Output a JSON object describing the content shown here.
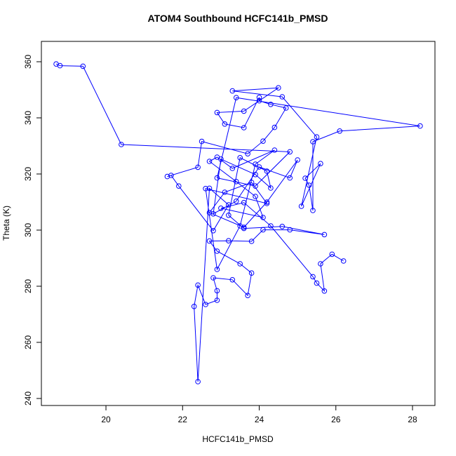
{
  "chart_data": {
    "type": "line",
    "title": "ATOM4 Southbound HCFC141b_PMSD",
    "xlabel": "HCFC141b_PMSD",
    "ylabel": "Theta (K)",
    "color": "#0000ff",
    "marker": "circle",
    "xlim": [
      18.315,
      28.586
    ],
    "ylim": [
      237.5,
      367.25
    ],
    "xticks": [
      20,
      22,
      24,
      26,
      28
    ],
    "yticks": [
      240,
      260,
      280,
      300,
      320,
      340,
      360
    ],
    "x": [
      18.7,
      18.8,
      19.4,
      20.4,
      24.8,
      23.9,
      22.9,
      23.4,
      28.2,
      26.1,
      25.4,
      25.4,
      25.3,
      25.2,
      25.6,
      25.1,
      25.5,
      24.6,
      23.3,
      24.5,
      23.6,
      22.9,
      23.1,
      23.6,
      24.0,
      24.0,
      24.3,
      24.7,
      24.4,
      24.1,
      23.7,
      22.5,
      22.4,
      21.6,
      21.7,
      21.9,
      22.8,
      23.2,
      22.7,
      22.4,
      22.3,
      22.4,
      22.6,
      22.9,
      22.9,
      22.8,
      23.3,
      23.7,
      23.8,
      23.5,
      22.9,
      22.7,
      23.2,
      23.8,
      24.1,
      24.8,
      25.7,
      24.6,
      23.6,
      23.2,
      23.5,
      24.2,
      24.3,
      23.9,
      23.0,
      22.8,
      23.4,
      24.0,
      24.8,
      25.0,
      24.2,
      23.6,
      22.7,
      23.1,
      23.8,
      24.2,
      22.6,
      22.9,
      23.5,
      23.9,
      24.4,
      23.3,
      22.9,
      22.7,
      23.4,
      23.9,
      24.1,
      23.0,
      23.6,
      24.3,
      25.4,
      25.5,
      25.7,
      25.6,
      25.9,
      26.2
    ],
    "values": [
      359.2,
      358.6,
      358.4,
      330.5,
      327.9,
      315.7,
      318.6,
      347.2,
      337.1,
      335.3,
      331.5,
      307.0,
      316.0,
      318.5,
      323.7,
      308.5,
      333.2,
      347.5,
      349.6,
      350.7,
      342.4,
      341.9,
      337.8,
      336.5,
      347.3,
      346.1,
      344.8,
      343.5,
      336.6,
      331.7,
      327.2,
      331.6,
      322.4,
      319.1,
      319.5,
      315.7,
      299.8,
      309.0,
      314.9,
      246.0,
      272.8,
      280.4,
      273.5,
      275.0,
      278.4,
      283.0,
      282.3,
      276.7,
      284.7,
      288.0,
      292.5,
      296.1,
      296.2,
      296.0,
      300.1,
      300.1,
      298.4,
      301.3,
      300.6,
      305.3,
      325.8,
      321.0,
      315.0,
      319.8,
      325.3,
      305.8,
      310.3,
      322.5,
      318.6,
      325.0,
      310.0,
      301.0,
      306.2,
      313.5,
      317.0,
      309.5,
      314.8,
      286.0,
      301.5,
      323.5,
      328.5,
      322.0,
      326.0,
      324.5,
      317.3,
      312.0,
      304.5,
      307.8,
      309.8,
      301.5,
      283.4,
      281.1,
      278.3,
      288.0,
      291.4,
      289.0
    ]
  }
}
